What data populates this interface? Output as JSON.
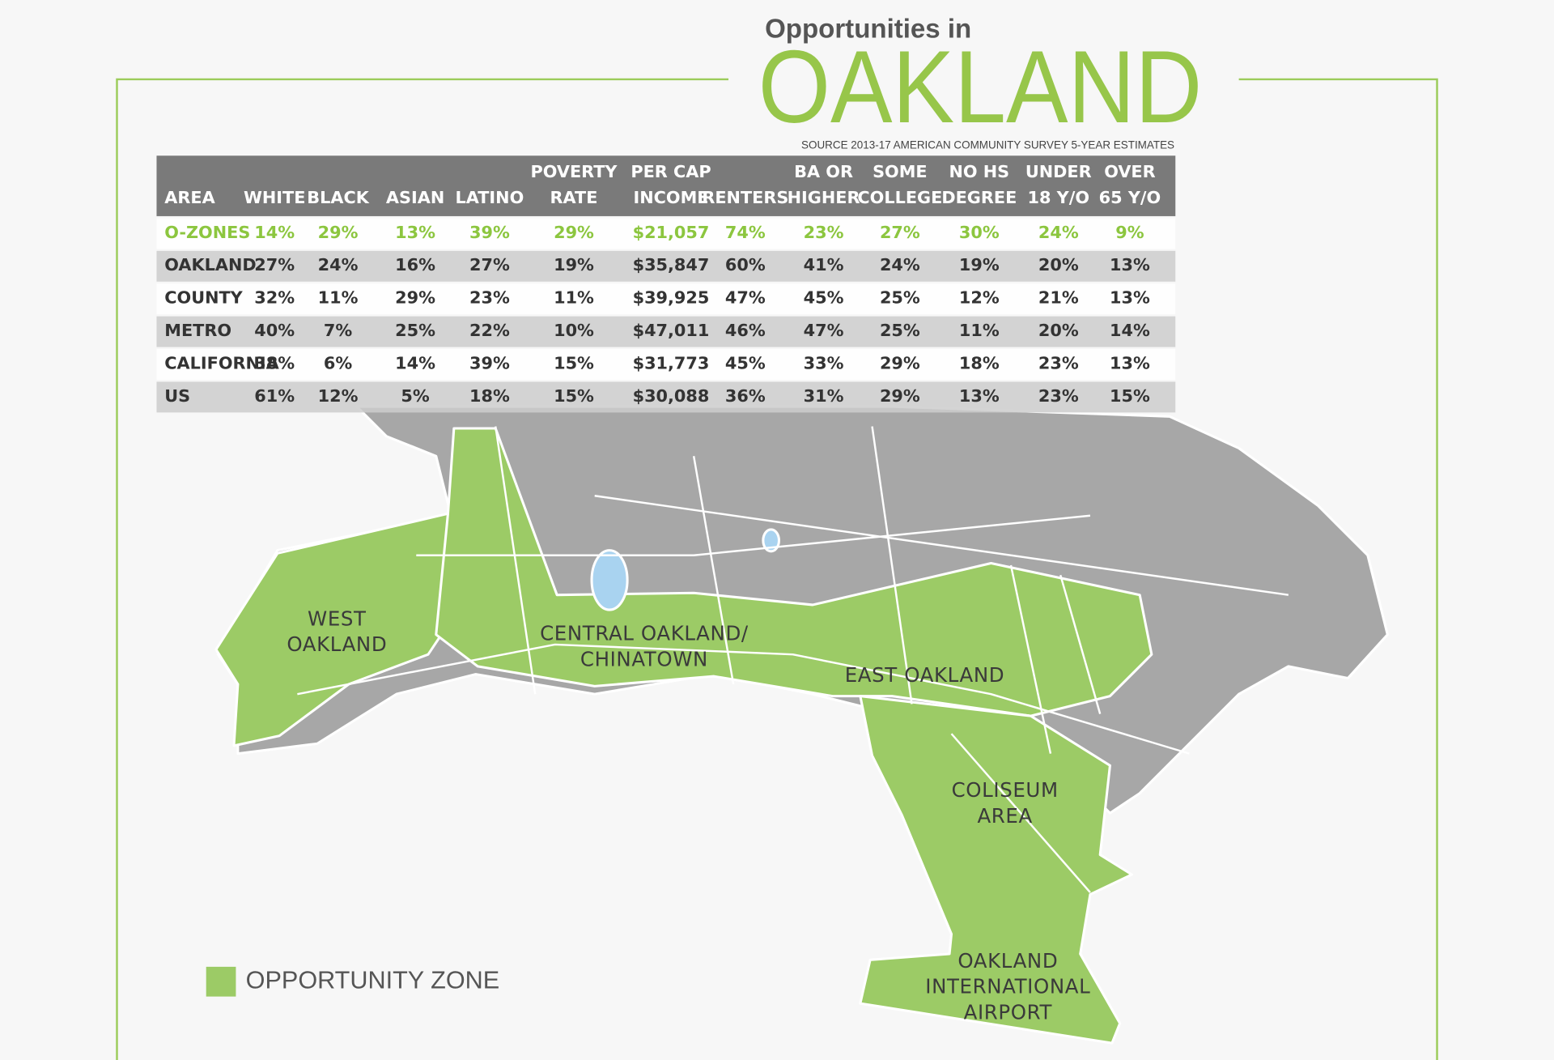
{
  "header": {
    "kicker": "Opportunities in",
    "title": "OAKLAND",
    "source": "SOURCE 2013-17 AMERICAN COMMUNITY SURVEY 5-YEAR ESTIMATES"
  },
  "table": {
    "columns": [
      [
        "AREA"
      ],
      [
        "WHITE"
      ],
      [
        "BLACK"
      ],
      [
        "ASIAN"
      ],
      [
        "LATINO"
      ],
      [
        "POVERTY",
        "RATE"
      ],
      [
        "PER CAP",
        "INCOME"
      ],
      [
        "RENTERS"
      ],
      [
        "BA OR",
        "HIGHER"
      ],
      [
        "SOME",
        "COLLEGE"
      ],
      [
        "NO HS",
        "DEGREE"
      ],
      [
        "UNDER",
        "18 Y/O"
      ],
      [
        "OVER",
        "65 Y/O"
      ]
    ],
    "rows": [
      [
        "O-ZONES",
        "14%",
        "29%",
        "13%",
        "39%",
        "29%",
        "$21,057",
        "74%",
        "23%",
        "27%",
        "30%",
        "24%",
        "9%"
      ],
      [
        "OAKLAND",
        "27%",
        "24%",
        "16%",
        "27%",
        "19%",
        "$35,847",
        "60%",
        "41%",
        "24%",
        "19%",
        "20%",
        "13%"
      ],
      [
        "COUNTY",
        "32%",
        "11%",
        "29%",
        "23%",
        "11%",
        "$39,925",
        "47%",
        "45%",
        "25%",
        "12%",
        "21%",
        "13%"
      ],
      [
        "METRO",
        "40%",
        "7%",
        "25%",
        "22%",
        "10%",
        "$47,011",
        "46%",
        "47%",
        "25%",
        "11%",
        "20%",
        "14%"
      ],
      [
        "CALIFORNIA",
        "38%",
        "6%",
        "14%",
        "39%",
        "15%",
        "$31,773",
        "45%",
        "33%",
        "29%",
        "18%",
        "23%",
        "13%"
      ],
      [
        "US",
        "61%",
        "12%",
        "5%",
        "18%",
        "15%",
        "$30,088",
        "36%",
        "31%",
        "29%",
        "13%",
        "23%",
        "15%"
      ]
    ]
  },
  "map": {
    "labels": [
      [
        "WEST",
        "OAKLAND"
      ],
      [
        "CENTRAL OAKLAND/",
        "CHINATOWN"
      ],
      [
        "EAST OAKLAND"
      ],
      [
        "COLISEUM",
        "AREA"
      ],
      [
        "OAKLAND",
        "INTERNATIONAL",
        "AIRPORT"
      ]
    ]
  },
  "legend": {
    "label": "OPPORTUNITY ZONE"
  }
}
